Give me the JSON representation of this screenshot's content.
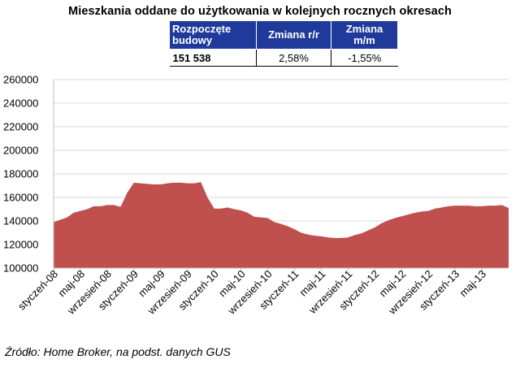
{
  "title": "Mieszkania oddane do użytkowania w kolejnych rocznych okresach",
  "table": {
    "headers": [
      "Rozpoczęte budowy",
      "Zmiana r/r",
      "Zmiana m/m"
    ],
    "values": [
      "151 538",
      "2,58%",
      "-1,55%"
    ]
  },
  "source": "Źródło: Home Broker, na podst. danych GUS",
  "colors": {
    "area": "#c0504d",
    "header_bg": "#1f3a9a",
    "grid": "#d9d9d9"
  },
  "chart_data": {
    "type": "area",
    "title": "Mieszkania oddane do użytkowania w kolejnych rocznych okresach",
    "xlabel": "",
    "ylabel": "",
    "ylim": [
      100000,
      260000
    ],
    "y_ticks": [
      100000,
      120000,
      140000,
      160000,
      180000,
      200000,
      220000,
      240000,
      260000
    ],
    "y_tick_labels": [
      "100000",
      "120000",
      "140000",
      "160000",
      "180000",
      "200000",
      "220000",
      "240000",
      "260000"
    ],
    "x_tick_labels": [
      {
        "index": 0,
        "label": "styczeń-08"
      },
      {
        "index": 4,
        "label": "maj-08"
      },
      {
        "index": 8,
        "label": "wrzesień-08"
      },
      {
        "index": 12,
        "label": "styczeń-09"
      },
      {
        "index": 16,
        "label": "maj-09"
      },
      {
        "index": 20,
        "label": "wrzesień-09"
      },
      {
        "index": 24,
        "label": "styczeń-10"
      },
      {
        "index": 28,
        "label": "maj-10"
      },
      {
        "index": 32,
        "label": "wrzesień-10"
      },
      {
        "index": 36,
        "label": "styczeń-11"
      },
      {
        "index": 40,
        "label": "maj-11"
      },
      {
        "index": 44,
        "label": "wrzesień-11"
      },
      {
        "index": 48,
        "label": "styczeń-12"
      },
      {
        "index": 52,
        "label": "maj-12"
      },
      {
        "index": 56,
        "label": "wrzesień-12"
      },
      {
        "index": 60,
        "label": "styczeń-13"
      },
      {
        "index": 64,
        "label": "maj-13"
      }
    ],
    "values": [
      139000,
      141000,
      143000,
      147000,
      148500,
      150000,
      152500,
      152500,
      153500,
      153500,
      152000,
      164000,
      172500,
      172000,
      171500,
      171000,
      171000,
      172000,
      172500,
      172500,
      172000,
      172000,
      173000,
      160000,
      150500,
      150500,
      151500,
      150000,
      149000,
      147000,
      143500,
      143000,
      142500,
      139000,
      137500,
      135500,
      133000,
      130000,
      128500,
      127500,
      127000,
      126000,
      125500,
      125500,
      126000,
      128000,
      129500,
      132000,
      134500,
      138000,
      140500,
      142500,
      144000,
      145500,
      147000,
      148000,
      148500,
      150500,
      151500,
      152500,
      153000,
      153000,
      153000,
      152500,
      152500,
      153000,
      153000,
      153500,
      151000
    ],
    "grid": true
  }
}
